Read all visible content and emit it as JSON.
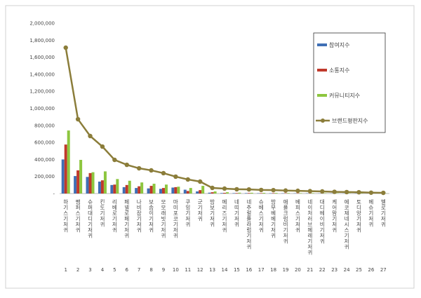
{
  "chart_data": {
    "type": "bar-line",
    "categories": [
      "하기스기저귀",
      "팸퍼스기저귀",
      "슈퍼대디기저귀",
      "킨도기저귀",
      "리베로기저귀",
      "페넬로페기저귀",
      "나비잠기저귀",
      "보솜이기저귀",
      "모모래빗기저귀",
      "마미포코기저귀",
      "쿠잉기저귀",
      "군기저귀",
      "밤보기저귀",
      "메리즈기저귀",
      "네띠기저귀",
      "네추럴플라럽기저귀",
      "슈베스기저귀",
      "밤부베베기저귀",
      "애플크럼비기저귀",
      "베피스기저귀",
      "네이처러브메레기저귀",
      "대디베이비기저귀",
      "케어맘기저귀",
      "에코제네시스기저귀",
      "토디앙기저귀",
      "베슈기저귀",
      "벨로기저귀"
    ],
    "ranks": [
      1,
      2,
      3,
      4,
      5,
      6,
      7,
      8,
      9,
      10,
      11,
      12,
      13,
      14,
      15,
      16,
      17,
      18,
      19,
      20,
      21,
      22,
      23,
      24,
      25,
      26,
      27
    ],
    "series": [
      {
        "name": "참여지수",
        "color": "#3f6fb5",
        "kind": "bar",
        "values": [
          400000,
          205000,
          195000,
          140000,
          100000,
          75000,
          65000,
          60000,
          55000,
          70000,
          45000,
          25000,
          10000,
          6000,
          5000,
          5000,
          4000,
          4000,
          3000,
          3000,
          3000,
          2000,
          2000,
          2000,
          2000,
          1000,
          1000
        ]
      },
      {
        "name": "소통지수",
        "color": "#c0392b",
        "kind": "bar",
        "values": [
          575000,
          272000,
          240000,
          155000,
          105000,
          100000,
          85000,
          90000,
          65000,
          75000,
          30000,
          40000,
          15000,
          8000,
          6000,
          6000,
          5000,
          5000,
          4000,
          4000,
          3000,
          3000,
          2000,
          2000,
          2000,
          1000,
          1000
        ]
      },
      {
        "name": "커뮤니티지수",
        "color": "#8dc63f",
        "kind": "bar",
        "values": [
          740000,
          395000,
          250000,
          260000,
          170000,
          150000,
          130000,
          115000,
          105000,
          80000,
          65000,
          90000,
          25000,
          15000,
          10000,
          9000,
          8000,
          7000,
          6000,
          5000,
          5000,
          4000,
          4000,
          3000,
          3000,
          2000,
          2000
        ]
      },
      {
        "name": "브랜드평판지수",
        "color": "#8b7d3a",
        "kind": "line",
        "values": [
          1712000,
          872000,
          675000,
          551000,
          395000,
          337000,
          296000,
          272000,
          239000,
          198000,
          165000,
          140000,
          66000,
          58000,
          50000,
          48000,
          42000,
          40000,
          35000,
          32000,
          28000,
          25000,
          20000,
          17000,
          15000,
          10000,
          8000
        ]
      }
    ],
    "ylim": [
      0,
      2000000
    ],
    "yticks": [
      {
        "value": 0,
        "label": "-"
      },
      {
        "value": 200000,
        "label": "200,000"
      },
      {
        "value": 400000,
        "label": "400,000"
      },
      {
        "value": 600000,
        "label": "600,000"
      },
      {
        "value": 800000,
        "label": "800,000"
      },
      {
        "value": 1000000,
        "label": "1,000,000"
      },
      {
        "value": 1200000,
        "label": "1,200,000"
      },
      {
        "value": 1400000,
        "label": "1,400,000"
      },
      {
        "value": 1600000,
        "label": "1,600,000"
      },
      {
        "value": 1800000,
        "label": "1,800,000"
      },
      {
        "value": 2000000,
        "label": "2,000,000"
      }
    ],
    "grid": false,
    "legend": "right"
  }
}
